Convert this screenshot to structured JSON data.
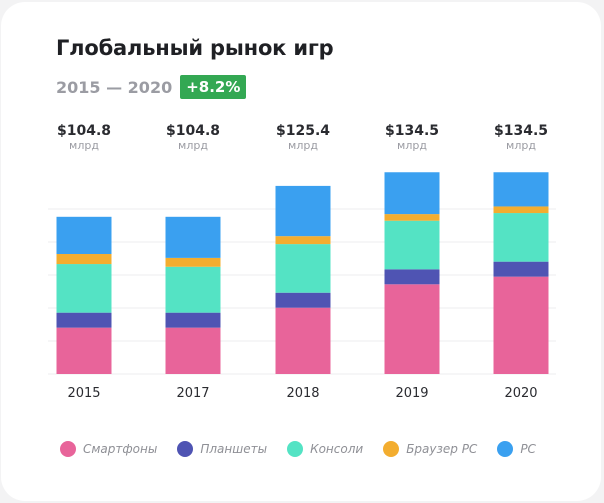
{
  "header": {
    "title": "Глобальный рынок игр",
    "period": "2015 — 2020",
    "growth_badge": "+8.2%",
    "badge_color": "#33a853"
  },
  "colors": {
    "smartphones": "#e8649a",
    "tablets": "#4f54b3",
    "consoles": "#54e3c4",
    "browser_pc": "#f3ad2f",
    "pc": "#3aa0f0"
  },
  "chart_data": {
    "type": "bar",
    "stacked": true,
    "title": "Глобальный рынок игр",
    "categories": [
      "2015",
      "2017",
      "2018",
      "2019",
      "2020"
    ],
    "totals": [
      "$104.8",
      "$104.8",
      "$125.4",
      "$134.5",
      "$134.5"
    ],
    "total_unit": "млрд",
    "series": [
      {
        "name": "Смартфоны",
        "color": "#e8649a",
        "values": [
          30.9,
          30.9,
          44.2,
          59.8,
          64.9
        ]
      },
      {
        "name": "Планшеты",
        "color": "#4f54b3",
        "values": [
          10.0,
          10.0,
          10.0,
          10.0,
          10.0
        ]
      },
      {
        "name": "Консоли",
        "color": "#54e3c4",
        "values": [
          32.4,
          30.6,
          32.4,
          32.4,
          32.4
        ]
      },
      {
        "name": "Браузер PC",
        "color": "#f3ad2f",
        "values": [
          6.7,
          5.9,
          5.3,
          4.4,
          4.4
        ]
      },
      {
        "name": "PC",
        "color": "#3aa0f0",
        "values": [
          24.8,
          27.4,
          33.5,
          27.9,
          22.8
        ]
      }
    ],
    "grid": true,
    "legend_position": "bottom"
  }
}
